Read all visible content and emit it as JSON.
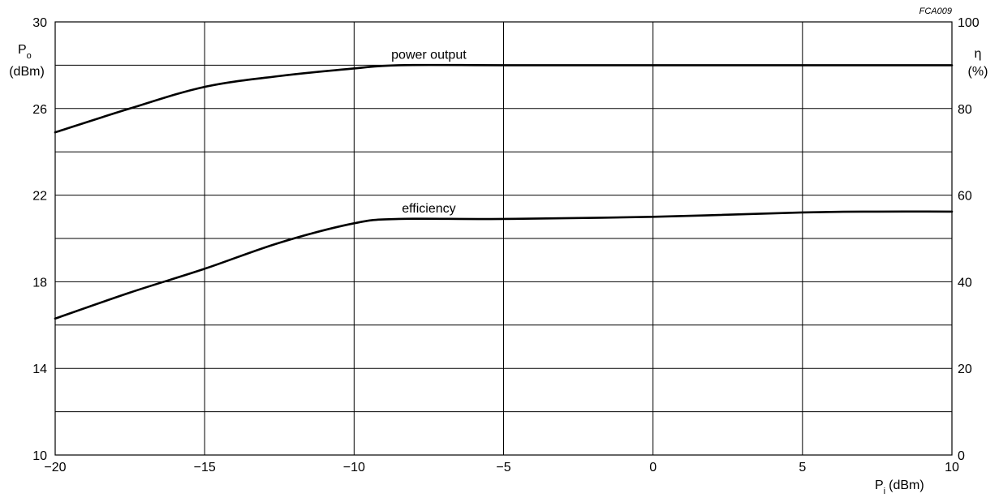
{
  "chart_data": {
    "type": "line",
    "figure_code": "FCA009",
    "x": [
      -20,
      -17.5,
      -15,
      -12.5,
      -10,
      -8.5,
      -5,
      0,
      5,
      7.5,
      10
    ],
    "xlim": [
      -20,
      10
    ],
    "x_ticks": [
      -20,
      -15,
      -10,
      -5,
      0,
      5,
      10
    ],
    "x_tick_labels": [
      "−20",
      "−15",
      "−10",
      "−5",
      "0",
      "5",
      "10"
    ],
    "x_gridlines": [
      -20,
      -15,
      -10,
      -5,
      0,
      5,
      10
    ],
    "xlabel": {
      "main": "P",
      "sub": "i",
      "unit": "(dBm)"
    },
    "ylim_left": [
      10,
      30
    ],
    "y_ticks_left": [
      10,
      14,
      18,
      22,
      26,
      30
    ],
    "ylabel_left": {
      "main": "P",
      "sub": "o",
      "unit": "(dBm)"
    },
    "ylim_right": [
      0,
      100
    ],
    "y_ticks_right": [
      0,
      20,
      40,
      60,
      80,
      100
    ],
    "ylabel_right": {
      "main": "η",
      "unit": "(%)"
    },
    "y_gridlines_left_units": [
      12,
      14,
      16,
      18,
      20,
      22,
      24,
      26,
      28,
      30
    ],
    "grid": true,
    "series": [
      {
        "name": "power output",
        "axis": "left",
        "values": [
          24.9,
          26.0,
          27.0,
          27.5,
          27.85,
          28.0,
          28.0,
          28.0,
          28.0,
          28.0,
          28.0
        ],
        "label_x": -7.5
      },
      {
        "name": "efficiency",
        "axis": "right",
        "values": [
          31.5,
          37.5,
          43.0,
          49.0,
          53.5,
          54.5,
          54.5,
          55.0,
          56.0,
          56.2,
          56.2
        ],
        "label_x": -7.5
      }
    ]
  }
}
